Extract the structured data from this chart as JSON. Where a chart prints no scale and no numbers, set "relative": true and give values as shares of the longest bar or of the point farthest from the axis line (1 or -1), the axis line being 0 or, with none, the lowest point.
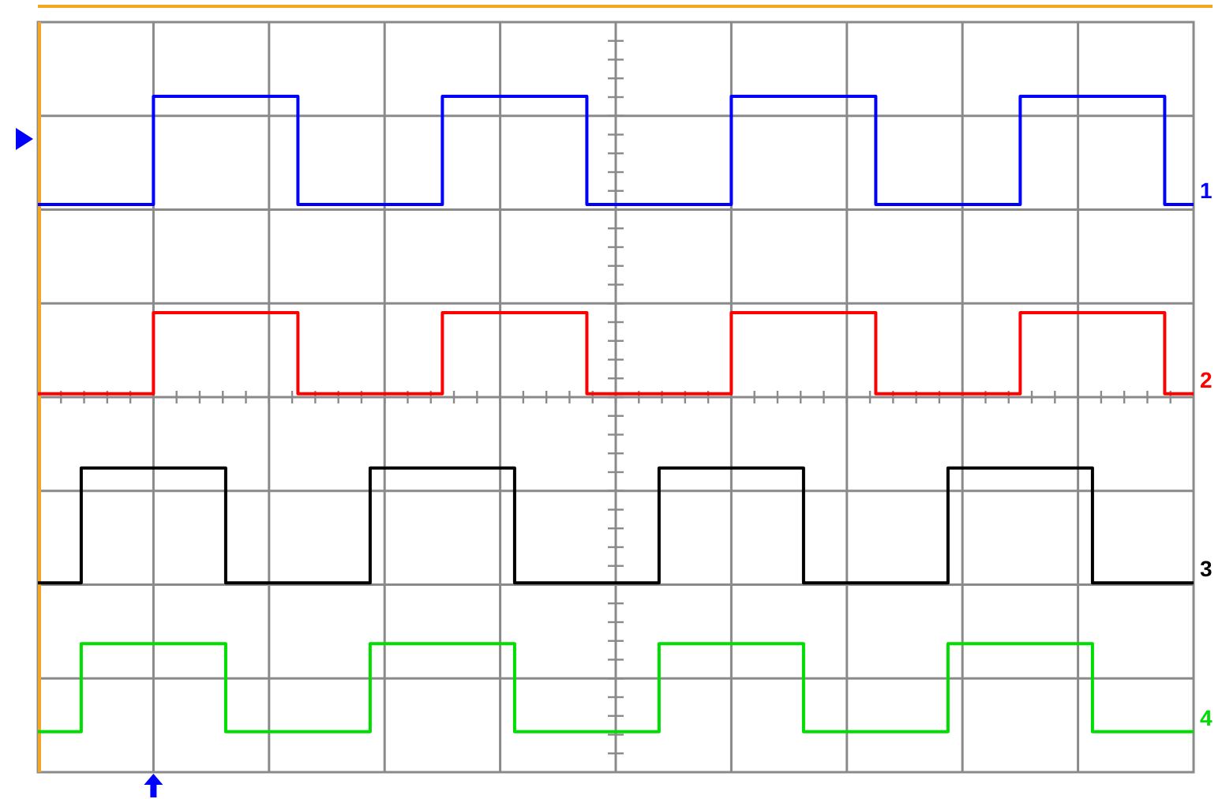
{
  "chart_data": {
    "type": "step",
    "relative": true,
    "grid": true,
    "categories": [
      null,
      null,
      null,
      null,
      null,
      null,
      null,
      null,
      null,
      null,
      null,
      null,
      null,
      null,
      null,
      null,
      null,
      null,
      null,
      null,
      null,
      null,
      null,
      null,
      null,
      null,
      null,
      null,
      null,
      null,
      null,
      null,
      null,
      null,
      null,
      null,
      null,
      null,
      null,
      null,
      null,
      null,
      null,
      null,
      null,
      null,
      null,
      null,
      null,
      null,
      null,
      null,
      null,
      null,
      null,
      null,
      null,
      null,
      null,
      null,
      null,
      null,
      null,
      null,
      null,
      null,
      null,
      null,
      null,
      null,
      null,
      null,
      null,
      null,
      null,
      null,
      null,
      null,
      null,
      null,
      null
    ],
    "series": [
      {
        "name": "1",
        "color": "#0000ff",
        "values": [
          0.84,
          0.84,
          0.84,
          0.84,
          0.84,
          0.84,
          0.84,
          0.84,
          1,
          1,
          1,
          1,
          1,
          1,
          1,
          1,
          1,
          1,
          0.84,
          0.84,
          0.84,
          0.84,
          0.84,
          0.84,
          0.84,
          0.84,
          0.84,
          0.84,
          1,
          1,
          1,
          1,
          1,
          1,
          1,
          1,
          1,
          1,
          0.84,
          0.84,
          0.84,
          0.84,
          0.84,
          0.84,
          0.84,
          0.84,
          0.84,
          0.84,
          1,
          1,
          1,
          1,
          1,
          1,
          1,
          1,
          1,
          1,
          0.84,
          0.84,
          0.84,
          0.84,
          0.84,
          0.84,
          0.84,
          0.84,
          0.84,
          0.84,
          1,
          1,
          1,
          1,
          1,
          1,
          1,
          1,
          1,
          1,
          0.84,
          0.84,
          0.84
        ]
      },
      {
        "name": "2",
        "color": "#ff0000",
        "values": [
          0.56,
          0.56,
          0.56,
          0.56,
          0.56,
          0.56,
          0.56,
          0.56,
          0.68,
          0.68,
          0.68,
          0.68,
          0.68,
          0.68,
          0.68,
          0.68,
          0.68,
          0.68,
          0.56,
          0.56,
          0.56,
          0.56,
          0.56,
          0.56,
          0.56,
          0.56,
          0.56,
          0.56,
          0.68,
          0.68,
          0.68,
          0.68,
          0.68,
          0.68,
          0.68,
          0.68,
          0.68,
          0.68,
          0.56,
          0.56,
          0.56,
          0.56,
          0.56,
          0.56,
          0.56,
          0.56,
          0.56,
          0.56,
          0.68,
          0.68,
          0.68,
          0.68,
          0.68,
          0.68,
          0.68,
          0.68,
          0.68,
          0.68,
          0.56,
          0.56,
          0.56,
          0.56,
          0.56,
          0.56,
          0.56,
          0.56,
          0.56,
          0.56,
          0.68,
          0.68,
          0.68,
          0.68,
          0.68,
          0.68,
          0.68,
          0.68,
          0.68,
          0.68,
          0.56,
          0.56,
          0.56
        ]
      },
      {
        "name": "3",
        "color": "#000000",
        "values": [
          0.28,
          0.28,
          0.28,
          0.45,
          0.45,
          0.45,
          0.45,
          0.45,
          0.45,
          0.45,
          0.45,
          0.45,
          0.45,
          0.28,
          0.28,
          0.28,
          0.28,
          0.28,
          0.28,
          0.28,
          0.28,
          0.28,
          0.28,
          0.45,
          0.45,
          0.45,
          0.45,
          0.45,
          0.45,
          0.45,
          0.45,
          0.45,
          0.45,
          0.28,
          0.28,
          0.28,
          0.28,
          0.28,
          0.28,
          0.28,
          0.28,
          0.28,
          0.28,
          0.45,
          0.45,
          0.45,
          0.45,
          0.45,
          0.45,
          0.45,
          0.45,
          0.45,
          0.45,
          0.28,
          0.28,
          0.28,
          0.28,
          0.28,
          0.28,
          0.28,
          0.28,
          0.28,
          0.28,
          0.45,
          0.45,
          0.45,
          0.45,
          0.45,
          0.45,
          0.45,
          0.45,
          0.45,
          0.45,
          0.28,
          0.28,
          0.28,
          0.28,
          0.28,
          0.28,
          0.28,
          0.28
        ]
      },
      {
        "name": "4",
        "color": "#00dd00",
        "values": [
          0.06,
          0.06,
          0.06,
          0.19,
          0.19,
          0.19,
          0.19,
          0.19,
          0.19,
          0.19,
          0.19,
          0.19,
          0.19,
          0.06,
          0.06,
          0.06,
          0.06,
          0.06,
          0.06,
          0.06,
          0.06,
          0.06,
          0.06,
          0.19,
          0.19,
          0.19,
          0.19,
          0.19,
          0.19,
          0.19,
          0.19,
          0.19,
          0.19,
          0.06,
          0.06,
          0.06,
          0.06,
          0.06,
          0.06,
          0.06,
          0.06,
          0.06,
          0.06,
          0.19,
          0.19,
          0.19,
          0.19,
          0.19,
          0.19,
          0.19,
          0.19,
          0.19,
          0.19,
          0.06,
          0.06,
          0.06,
          0.06,
          0.06,
          0.06,
          0.06,
          0.06,
          0.06,
          0.06,
          0.19,
          0.19,
          0.19,
          0.19,
          0.19,
          0.19,
          0.19,
          0.19,
          0.19,
          0.19,
          0.06,
          0.06,
          0.06,
          0.06,
          0.06,
          0.06,
          0.06,
          0.06
        ]
      }
    ]
  }
}
